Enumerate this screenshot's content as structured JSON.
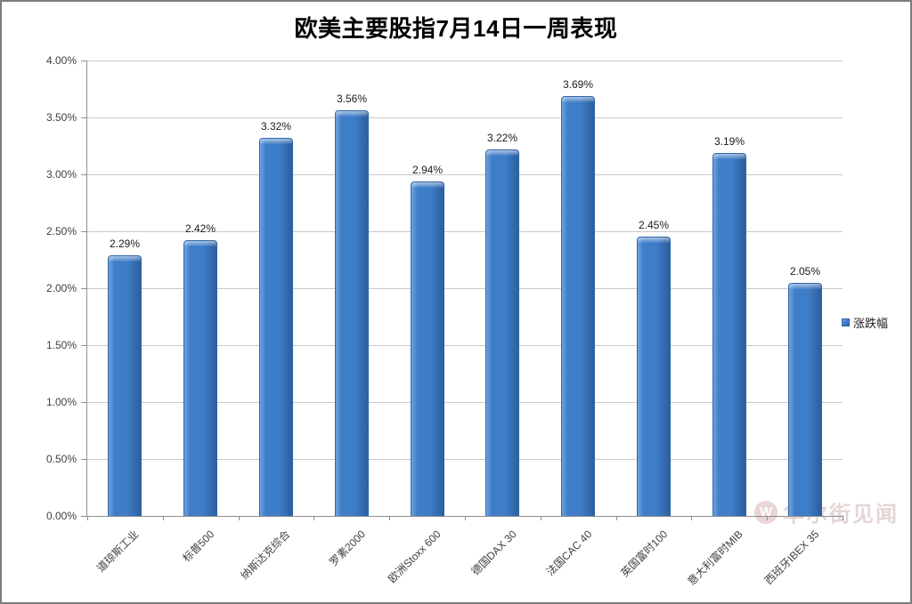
{
  "chart_data": {
    "type": "bar",
    "title": "欧美主要股指7月14日一周表现",
    "categories": [
      "道琼斯工业",
      "标普500",
      "纳斯达克综合",
      "罗素2000",
      "欧洲Stoxx 600",
      "德国DAX 30",
      "法国CAC 40",
      "英国富时100",
      "意大利富时MIB",
      "西班牙IBEX 35"
    ],
    "series": [
      {
        "name": "涨跌幅",
        "values": [
          2.29,
          2.42,
          3.32,
          3.56,
          2.94,
          3.22,
          3.69,
          2.45,
          3.19,
          2.05
        ]
      }
    ],
    "value_labels": [
      "2.29%",
      "2.42%",
      "3.32%",
      "3.56%",
      "2.94%",
      "3.22%",
      "3.69%",
      "2.45%",
      "3.19%",
      "2.05%"
    ],
    "xlabel": "",
    "ylabel": "",
    "ylim": [
      0,
      4
    ],
    "ytick_step": 0.5,
    "ytick_labels": [
      "0.00%",
      "0.50%",
      "1.00%",
      "1.50%",
      "2.00%",
      "2.50%",
      "3.00%",
      "3.50%",
      "4.00%"
    ],
    "grid": true,
    "legend_position": "right",
    "colors": {
      "bar": "#3E7DC8",
      "bar_light": "#6FA3DE",
      "bar_dark": "#2C5F9E",
      "bar_edge": "#2F66A6"
    }
  },
  "watermark": {
    "text": "华尔街见闻",
    "logo_letter": "W"
  }
}
